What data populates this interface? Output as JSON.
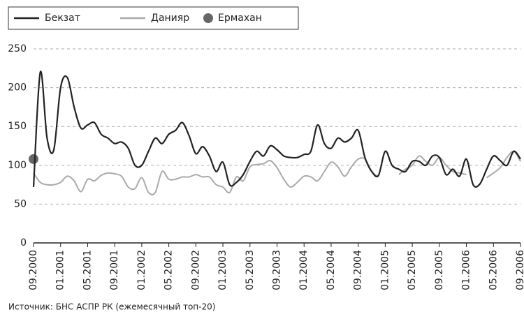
{
  "chart_data": {
    "type": "line",
    "source": "Источник: БНС АСПР РК (ежемесячный топ-20)",
    "categories": [
      "09.2000",
      null,
      null,
      null,
      "01.2001",
      null,
      null,
      null,
      "05.2001",
      null,
      null,
      null,
      "09.2001",
      null,
      null,
      null,
      "01.2002",
      null,
      null,
      null,
      "05.2002",
      null,
      null,
      null,
      "09.2002",
      null,
      null,
      null,
      "01.2003",
      null,
      null,
      null,
      "05.2003",
      null,
      null,
      null,
      "09.2003",
      null,
      null,
      null,
      "01.2004",
      null,
      null,
      null,
      "05.2004",
      null,
      null,
      null,
      "09.2004",
      null,
      null,
      null,
      "01.2005",
      null,
      null,
      null,
      "05.2005",
      null,
      null,
      null,
      "09.2005",
      null,
      null,
      null,
      "01.2006",
      null,
      null,
      null,
      "05.2006",
      null,
      null,
      null,
      "09.2006"
    ],
    "series": [
      {
        "name": "Бекзат",
        "color": "#222222",
        "values": [
          72,
          220,
          135,
          120,
          200,
          213,
          175,
          148,
          152,
          155,
          140,
          135,
          128,
          130,
          122,
          100,
          100,
          118,
          135,
          128,
          140,
          145,
          155,
          138,
          115,
          124,
          112,
          92,
          104,
          75,
          78,
          88,
          105,
          118,
          112,
          125,
          120,
          112,
          110,
          110,
          114,
          118,
          152,
          128,
          122,
          135,
          130,
          135,
          145,
          110,
          92,
          87,
          118,
          100,
          95,
          92,
          105,
          105,
          100,
          112,
          110,
          88,
          95,
          86,
          108,
          75,
          76,
          95,
          112,
          106,
          100,
          118,
          108
        ]
      },
      {
        "name": "Данияр",
        "color": "#aaaaaa",
        "values": [
          90,
          78,
          75,
          75,
          78,
          86,
          80,
          66,
          82,
          80,
          87,
          90,
          89,
          86,
          72,
          70,
          84,
          65,
          65,
          92,
          82,
          82,
          85,
          85,
          88,
          85,
          85,
          75,
          72,
          65,
          85,
          80,
          98,
          101,
          102,
          106,
          97,
          82,
          72,
          78,
          86,
          85,
          80,
          92,
          104,
          98,
          86,
          98,
          108,
          108,
          92,
          85,
          null,
          null,
          88,
          95,
          100,
          112,
          105,
          100,
          110,
          100,
          92,
          90,
          88,
          null,
          null,
          84,
          90,
          97,
          110,
          118,
          105
        ]
      },
      {
        "name": "Ермахан",
        "color": "#666666",
        "marker": "circle",
        "values": [
          108,
          null,
          null,
          null,
          null,
          null,
          null,
          null,
          null,
          null,
          null,
          null,
          null,
          null,
          null,
          null,
          null,
          null,
          null,
          null,
          null,
          null,
          null,
          null,
          null,
          null,
          null,
          null,
          null,
          null,
          null,
          null,
          null,
          null,
          null,
          null,
          null,
          null,
          null,
          null,
          null,
          null,
          null,
          null,
          null,
          null,
          null,
          null,
          null,
          null,
          null,
          null,
          null,
          null,
          null,
          null,
          null,
          null,
          null,
          null,
          null,
          null,
          null,
          null,
          null,
          null,
          null,
          null,
          null,
          null,
          null,
          null,
          null
        ]
      }
    ],
    "ylim": [
      0,
      250
    ],
    "yticks": [
      0,
      50,
      100,
      150,
      200,
      250
    ],
    "grid": true
  }
}
